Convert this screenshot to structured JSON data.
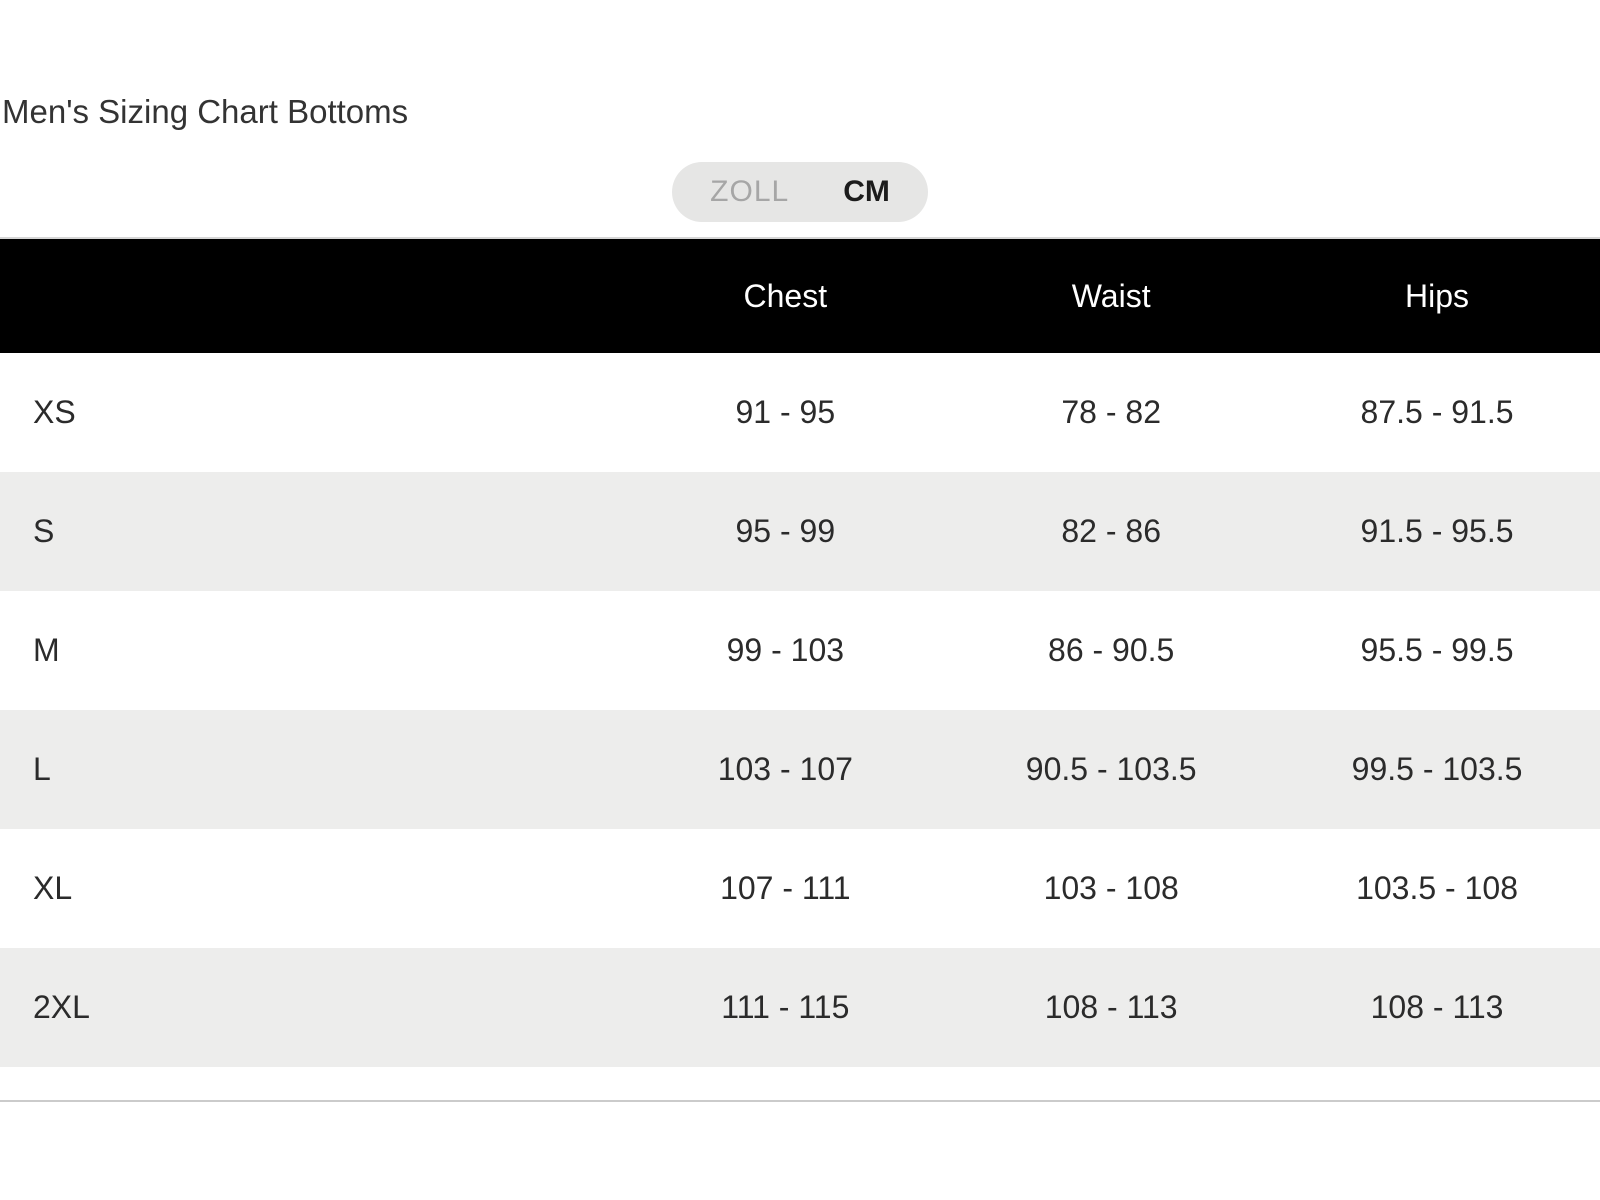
{
  "page": {
    "title": "Men's Sizing Chart Bottoms"
  },
  "unit_toggle": {
    "options": [
      {
        "label": "ZOLL",
        "active": false
      },
      {
        "label": "CM",
        "active": true
      }
    ],
    "selected": "CM"
  },
  "colors": {
    "header_bg": "#000000",
    "header_text": "#ffffff",
    "row_stripe": "#ededec",
    "body_text": "#2b2b2b",
    "toggle_bg": "#e6e6e5",
    "toggle_inactive_text": "#a6a6a6",
    "divider": "#cbcbcb"
  },
  "chart_data": {
    "type": "table",
    "title": "Men's Sizing Chart Bottoms",
    "unit": "CM",
    "columns": [
      "",
      "Chest",
      "Waist",
      "Hips"
    ],
    "rows": [
      {
        "size": "XS",
        "chest": "91 - 95",
        "waist": "78 - 82",
        "hips": "87.5 - 91.5"
      },
      {
        "size": "S",
        "chest": "95 - 99",
        "waist": "82 - 86",
        "hips": "91.5 - 95.5"
      },
      {
        "size": "M",
        "chest": "99 - 103",
        "waist": "86 - 90.5",
        "hips": "95.5 - 99.5"
      },
      {
        "size": "L",
        "chest": "103 - 107",
        "waist": "90.5 - 103.5",
        "hips": "99.5 - 103.5"
      },
      {
        "size": "XL",
        "chest": "107 - 111",
        "waist": "103 - 108",
        "hips": "103.5 - 108"
      },
      {
        "size": "2XL",
        "chest": "111 - 115",
        "waist": "108 - 113",
        "hips": "108 - 113"
      }
    ]
  }
}
